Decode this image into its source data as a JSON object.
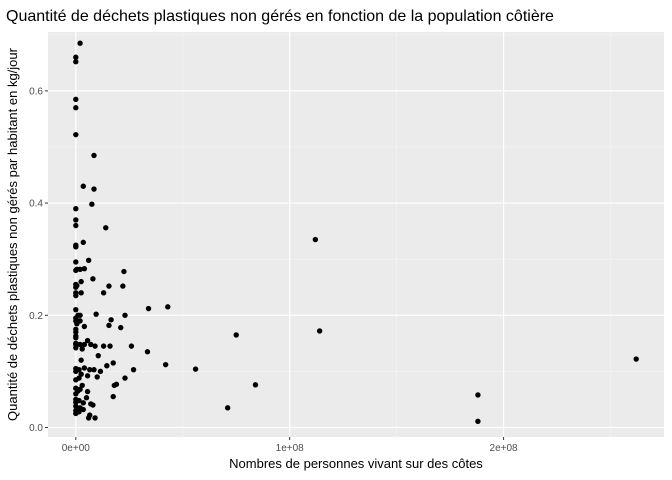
{
  "chart_data": {
    "type": "scatter",
    "title": "Quantité de déchets plastiques non gérés en fonction de la population côtière",
    "xlabel": "Nombres de personnes vivant sur des côtes",
    "ylabel": "Quantité de déchets plastiques non gérés par habitant en kg/jour",
    "xlim": [
      -13000000,
      275000000
    ],
    "ylim": [
      -0.017,
      0.705
    ],
    "x_ticks": [
      0,
      100000000,
      200000000
    ],
    "x_tick_labels": [
      "0e+00",
      "1e+08",
      "2e+08"
    ],
    "y_ticks": [
      0.0,
      0.2,
      0.4,
      0.6
    ],
    "y_tick_labels": [
      "0.0",
      "0.2",
      "0.4",
      "0.6"
    ],
    "grid": true,
    "point_color": "#000000",
    "panel_color": "#ebebeb",
    "points": [
      [
        0,
        0.66
      ],
      [
        0,
        0.652
      ],
      [
        0,
        0.585
      ],
      [
        0,
        0.57
      ],
      [
        0,
        0.522
      ],
      [
        2000000,
        0.685
      ],
      [
        8500000,
        0.485
      ],
      [
        3500000,
        0.43
      ],
      [
        8500000,
        0.425
      ],
      [
        7500000,
        0.398
      ],
      [
        0,
        0.39
      ],
      [
        0,
        0.37
      ],
      [
        0,
        0.36
      ],
      [
        14000000,
        0.356
      ],
      [
        0,
        0.325
      ],
      [
        0,
        0.322
      ],
      [
        3500000,
        0.33
      ],
      [
        6000000,
        0.298
      ],
      [
        0,
        0.295
      ],
      [
        4000000,
        0.283
      ],
      [
        500000,
        0.282
      ],
      [
        2000000,
        0.282
      ],
      [
        0,
        0.28
      ],
      [
        22500000,
        0.278
      ],
      [
        8000000,
        0.265
      ],
      [
        2500000,
        0.26
      ],
      [
        0,
        0.255
      ],
      [
        0,
        0.25
      ],
      [
        500000,
        0.253
      ],
      [
        15500000,
        0.252
      ],
      [
        22000000,
        0.252
      ],
      [
        13000000,
        0.24
      ],
      [
        0,
        0.24
      ],
      [
        2500000,
        0.24
      ],
      [
        0,
        0.235
      ],
      [
        43000000,
        0.215
      ],
      [
        34000000,
        0.212
      ],
      [
        0,
        0.21
      ],
      [
        1000000,
        0.2
      ],
      [
        9500000,
        0.202
      ],
      [
        2000000,
        0.2
      ],
      [
        23000000,
        0.2
      ],
      [
        0,
        0.195
      ],
      [
        16500000,
        0.192
      ],
      [
        2000000,
        0.19
      ],
      [
        0,
        0.19
      ],
      [
        500000,
        0.185
      ],
      [
        4000000,
        0.18
      ],
      [
        15500000,
        0.182
      ],
      [
        21000000,
        0.178
      ],
      [
        0,
        0.175
      ],
      [
        0,
        0.17
      ],
      [
        114000000,
        0.172
      ],
      [
        0,
        0.163
      ],
      [
        0,
        0.16
      ],
      [
        75000000,
        0.165
      ],
      [
        5500000,
        0.155
      ],
      [
        0,
        0.15
      ],
      [
        0,
        0.148
      ],
      [
        2000000,
        0.148
      ],
      [
        4000000,
        0.148
      ],
      [
        7000000,
        0.148
      ],
      [
        9000000,
        0.145
      ],
      [
        13000000,
        0.145
      ],
      [
        16000000,
        0.145
      ],
      [
        26000000,
        0.145
      ],
      [
        0,
        0.142
      ],
      [
        3000000,
        0.14
      ],
      [
        33500000,
        0.135
      ],
      [
        10500000,
        0.128
      ],
      [
        2500000,
        0.12
      ],
      [
        17500000,
        0.115
      ],
      [
        42000000,
        0.112
      ],
      [
        14500000,
        0.11
      ],
      [
        4000000,
        0.106
      ],
      [
        56000000,
        0.104
      ],
      [
        0,
        0.105
      ],
      [
        1500000,
        0.103
      ],
      [
        6500000,
        0.103
      ],
      [
        8500000,
        0.103
      ],
      [
        27000000,
        0.103
      ],
      [
        11500000,
        0.1
      ],
      [
        0,
        0.1
      ],
      [
        2500000,
        0.095
      ],
      [
        5500000,
        0.092
      ],
      [
        10000000,
        0.09
      ],
      [
        23000000,
        0.088
      ],
      [
        1500000,
        0.088
      ],
      [
        0,
        0.085
      ],
      [
        19000000,
        0.077
      ],
      [
        18000000,
        0.075
      ],
      [
        84000000,
        0.076
      ],
      [
        3000000,
        0.075
      ],
      [
        0,
        0.07
      ],
      [
        2000000,
        0.068
      ],
      [
        1000000,
        0.065
      ],
      [
        5500000,
        0.064
      ],
      [
        0,
        0.06
      ],
      [
        17500000,
        0.055
      ],
      [
        5000000,
        0.053
      ],
      [
        0,
        0.05
      ],
      [
        1500000,
        0.048
      ],
      [
        0,
        0.045
      ],
      [
        3500000,
        0.044
      ],
      [
        7000000,
        0.042
      ],
      [
        8000000,
        0.04
      ],
      [
        0,
        0.038
      ],
      [
        2000000,
        0.035
      ],
      [
        71000000,
        0.035
      ],
      [
        0,
        0.03
      ],
      [
        1500000,
        0.028
      ],
      [
        3500000,
        0.032
      ],
      [
        6500000,
        0.022
      ],
      [
        9000000,
        0.017
      ],
      [
        6000000,
        0.017
      ],
      [
        0,
        0.025
      ],
      [
        112000000,
        0.335
      ],
      [
        188000000,
        0.058
      ],
      [
        188000000,
        0.011
      ],
      [
        262000000,
        0.122
      ]
    ]
  }
}
